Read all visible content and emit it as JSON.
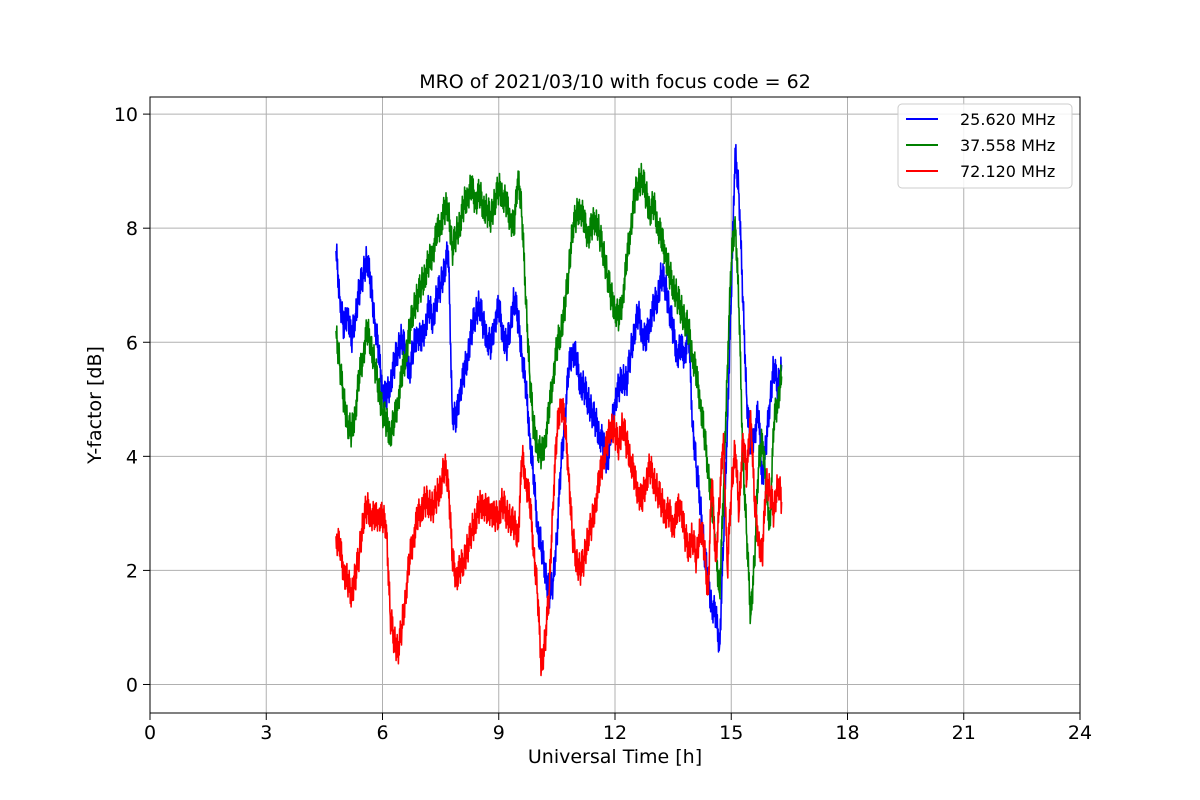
{
  "chart_data": {
    "type": "line",
    "title": "MRO of 2021/03/10 with focus code = 62",
    "xlabel": "Universal Time [h]",
    "ylabel": "Y-factor [dB]",
    "xlim": [
      0,
      24
    ],
    "ylim": [
      -0.5,
      10.3
    ],
    "xticks": [
      0,
      3,
      6,
      9,
      12,
      15,
      18,
      21,
      24
    ],
    "yticks": [
      0,
      2,
      4,
      6,
      8,
      10
    ],
    "grid": true,
    "legend_position": "top-right",
    "series": [
      {
        "name": "25.620 MHz",
        "color": "#0000ff",
        "x": [
          4.8,
          4.9,
          5.0,
          5.1,
          5.2,
          5.3,
          5.4,
          5.5,
          5.6,
          5.7,
          5.8,
          5.9,
          6.0,
          6.1,
          6.2,
          6.3,
          6.4,
          6.5,
          6.6,
          6.7,
          6.8,
          6.9,
          7.0,
          7.1,
          7.2,
          7.3,
          7.4,
          7.5,
          7.6,
          7.7,
          7.8,
          7.9,
          8.0,
          8.1,
          8.2,
          8.3,
          8.4,
          8.5,
          8.6,
          8.7,
          8.8,
          8.9,
          9.0,
          9.1,
          9.2,
          9.3,
          9.4,
          9.5,
          9.6,
          9.7,
          9.8,
          9.9,
          10.0,
          10.1,
          10.2,
          10.3,
          10.4,
          10.5,
          10.6,
          10.7,
          10.8,
          10.9,
          11.0,
          11.1,
          11.2,
          11.3,
          11.4,
          11.5,
          11.6,
          11.7,
          11.8,
          11.9,
          12.0,
          12.1,
          12.2,
          12.3,
          12.4,
          12.5,
          12.6,
          12.7,
          12.8,
          12.9,
          13.0,
          13.1,
          13.2,
          13.3,
          13.4,
          13.5,
          13.6,
          13.7,
          13.8,
          13.9,
          14.0,
          14.1,
          14.2,
          14.3,
          14.4,
          14.5,
          14.6,
          14.7,
          14.8,
          14.9,
          15.0,
          15.1,
          15.2,
          15.3,
          15.4,
          15.5,
          15.6,
          15.7,
          15.8,
          15.9,
          16.0,
          16.1,
          16.2,
          16.3
        ],
        "y": [
          7.6,
          6.8,
          6.2,
          6.6,
          6.0,
          6.5,
          6.9,
          7.2,
          7.5,
          7.0,
          6.4,
          5.8,
          5.2,
          5.0,
          5.3,
          5.6,
          5.9,
          6.1,
          5.8,
          5.5,
          5.9,
          6.2,
          6.0,
          6.3,
          6.6,
          6.4,
          6.8,
          7.0,
          7.3,
          7.6,
          4.8,
          4.6,
          5.2,
          5.4,
          5.8,
          6.2,
          6.5,
          6.7,
          6.3,
          6.1,
          5.9,
          6.4,
          6.6,
          6.2,
          5.9,
          6.3,
          6.8,
          6.4,
          5.8,
          5.2,
          4.4,
          3.6,
          2.8,
          2.4,
          2.0,
          1.6,
          1.8,
          2.6,
          3.8,
          4.6,
          5.5,
          5.9,
          5.7,
          5.3,
          5.2,
          5.0,
          4.8,
          4.6,
          4.4,
          4.2,
          3.9,
          4.4,
          5.0,
          5.2,
          5.4,
          5.3,
          5.8,
          6.2,
          6.5,
          6.2,
          6.0,
          6.4,
          6.6,
          6.8,
          7.2,
          7.0,
          6.6,
          6.2,
          5.8,
          5.9,
          5.8,
          6.2,
          4.6,
          3.8,
          3.2,
          2.4,
          1.8,
          1.4,
          1.2,
          0.7,
          2.5,
          4.6,
          6.8,
          9.4,
          8.6,
          6.8,
          5.0,
          4.2,
          4.4,
          4.8,
          3.6,
          4.2,
          5.0,
          5.6,
          5.2,
          5.6
        ]
      },
      {
        "name": "37.558 MHz",
        "color": "#008000",
        "x": [
          4.8,
          4.9,
          5.0,
          5.1,
          5.2,
          5.3,
          5.4,
          5.5,
          5.6,
          5.7,
          5.8,
          5.9,
          6.0,
          6.1,
          6.2,
          6.3,
          6.4,
          6.5,
          6.6,
          6.7,
          6.8,
          6.9,
          7.0,
          7.1,
          7.2,
          7.3,
          7.4,
          7.5,
          7.6,
          7.7,
          7.8,
          7.9,
          8.0,
          8.1,
          8.2,
          8.3,
          8.4,
          8.5,
          8.6,
          8.7,
          8.8,
          8.9,
          9.0,
          9.1,
          9.2,
          9.3,
          9.4,
          9.5,
          9.6,
          9.7,
          9.8,
          9.9,
          10.0,
          10.1,
          10.2,
          10.3,
          10.4,
          10.5,
          10.6,
          10.7,
          10.8,
          10.9,
          11.0,
          11.1,
          11.2,
          11.3,
          11.4,
          11.5,
          11.6,
          11.7,
          11.8,
          11.9,
          12.0,
          12.1,
          12.2,
          12.3,
          12.4,
          12.5,
          12.6,
          12.7,
          12.8,
          12.9,
          13.0,
          13.1,
          13.2,
          13.3,
          13.4,
          13.5,
          13.6,
          13.7,
          13.8,
          13.9,
          14.0,
          14.1,
          14.2,
          14.3,
          14.4,
          14.5,
          14.6,
          14.7,
          14.8,
          14.9,
          15.0,
          15.1,
          15.2,
          15.3,
          15.4,
          15.5,
          15.6,
          15.7,
          15.8,
          15.9,
          16.0,
          16.1,
          16.2,
          16.3
        ],
        "y": [
          6.2,
          5.6,
          5.0,
          4.6,
          4.4,
          4.8,
          5.4,
          5.8,
          6.2,
          6.0,
          5.6,
          5.2,
          4.8,
          4.6,
          4.4,
          4.6,
          5.0,
          5.4,
          5.8,
          6.2,
          6.6,
          6.8,
          7.0,
          7.2,
          7.4,
          7.6,
          7.9,
          8.1,
          8.3,
          8.4,
          7.6,
          7.9,
          8.1,
          8.4,
          8.6,
          8.7,
          8.5,
          8.6,
          8.4,
          8.3,
          8.2,
          8.5,
          8.7,
          8.6,
          8.4,
          8.2,
          8.0,
          9.0,
          8.2,
          6.8,
          5.4,
          4.5,
          4.2,
          4.0,
          4.3,
          4.8,
          5.4,
          5.9,
          6.2,
          6.6,
          7.2,
          8.0,
          8.2,
          8.4,
          8.1,
          7.9,
          8.0,
          8.2,
          7.9,
          7.6,
          7.2,
          6.8,
          6.6,
          6.4,
          6.8,
          7.4,
          8.0,
          8.5,
          8.8,
          8.9,
          8.6,
          8.3,
          8.4,
          8.1,
          7.8,
          7.6,
          7.2,
          7.0,
          6.8,
          6.6,
          6.4,
          6.2,
          5.8,
          5.4,
          5.0,
          4.4,
          3.8,
          3.2,
          2.4,
          1.6,
          3.4,
          5.6,
          7.4,
          8.2,
          6.6,
          4.0,
          2.6,
          1.2,
          2.2,
          3.8,
          4.4,
          3.4,
          2.8,
          4.6,
          5.0,
          5.4
        ]
      },
      {
        "name": "72.120 MHz",
        "color": "#ff0000",
        "x": [
          4.8,
          4.9,
          5.0,
          5.1,
          5.2,
          5.3,
          5.4,
          5.5,
          5.6,
          5.7,
          5.8,
          5.9,
          6.0,
          6.1,
          6.2,
          6.3,
          6.4,
          6.5,
          6.6,
          6.7,
          6.8,
          6.9,
          7.0,
          7.1,
          7.2,
          7.3,
          7.4,
          7.5,
          7.6,
          7.7,
          7.8,
          7.9,
          8.0,
          8.1,
          8.2,
          8.3,
          8.4,
          8.5,
          8.6,
          8.7,
          8.8,
          8.9,
          9.0,
          9.1,
          9.2,
          9.3,
          9.4,
          9.5,
          9.6,
          9.7,
          9.8,
          9.9,
          10.0,
          10.1,
          10.2,
          10.3,
          10.4,
          10.5,
          10.6,
          10.7,
          10.8,
          10.9,
          11.0,
          11.1,
          11.2,
          11.3,
          11.4,
          11.5,
          11.6,
          11.7,
          11.8,
          11.9,
          12.0,
          12.1,
          12.2,
          12.3,
          12.4,
          12.5,
          12.6,
          12.7,
          12.8,
          12.9,
          13.0,
          13.1,
          13.2,
          13.3,
          13.4,
          13.5,
          13.6,
          13.7,
          13.8,
          13.9,
          14.0,
          14.1,
          14.2,
          14.3,
          14.4,
          14.5,
          14.6,
          14.7,
          14.8,
          14.9,
          15.0,
          15.1,
          15.2,
          15.3,
          15.4,
          15.5,
          15.6,
          15.7,
          15.8,
          15.9,
          16.0,
          16.1,
          16.2,
          16.3
        ],
        "y": [
          2.6,
          2.4,
          2.0,
          1.8,
          1.6,
          1.9,
          2.3,
          2.9,
          3.1,
          3.0,
          2.9,
          3.0,
          2.9,
          2.8,
          1.2,
          0.8,
          0.6,
          1.0,
          1.6,
          2.2,
          2.6,
          2.9,
          3.1,
          3.2,
          3.2,
          3.1,
          3.3,
          3.5,
          3.8,
          3.6,
          2.2,
          1.9,
          2.0,
          2.2,
          2.4,
          2.7,
          2.9,
          3.1,
          3.2,
          3.0,
          3.1,
          2.9,
          3.0,
          3.2,
          3.0,
          2.9,
          2.8,
          2.6,
          4.0,
          3.6,
          3.2,
          2.4,
          1.6,
          0.3,
          0.8,
          1.6,
          3.2,
          4.4,
          5.0,
          4.6,
          3.8,
          2.6,
          2.2,
          2.0,
          2.2,
          2.6,
          2.8,
          3.2,
          3.6,
          4.0,
          4.2,
          4.6,
          4.4,
          4.2,
          4.6,
          4.2,
          4.0,
          3.6,
          3.4,
          3.2,
          3.6,
          3.8,
          3.6,
          3.4,
          3.2,
          3.0,
          3.0,
          2.8,
          3.0,
          3.2,
          2.6,
          2.4,
          2.6,
          2.2,
          2.8,
          2.4,
          1.6,
          3.6,
          2.2,
          3.2,
          4.4,
          2.0,
          3.4,
          4.2,
          3.0,
          4.4,
          3.6,
          4.8,
          3.2,
          2.6,
          2.2,
          3.6,
          3.4,
          3.0,
          3.6,
          3.2
        ]
      }
    ]
  }
}
